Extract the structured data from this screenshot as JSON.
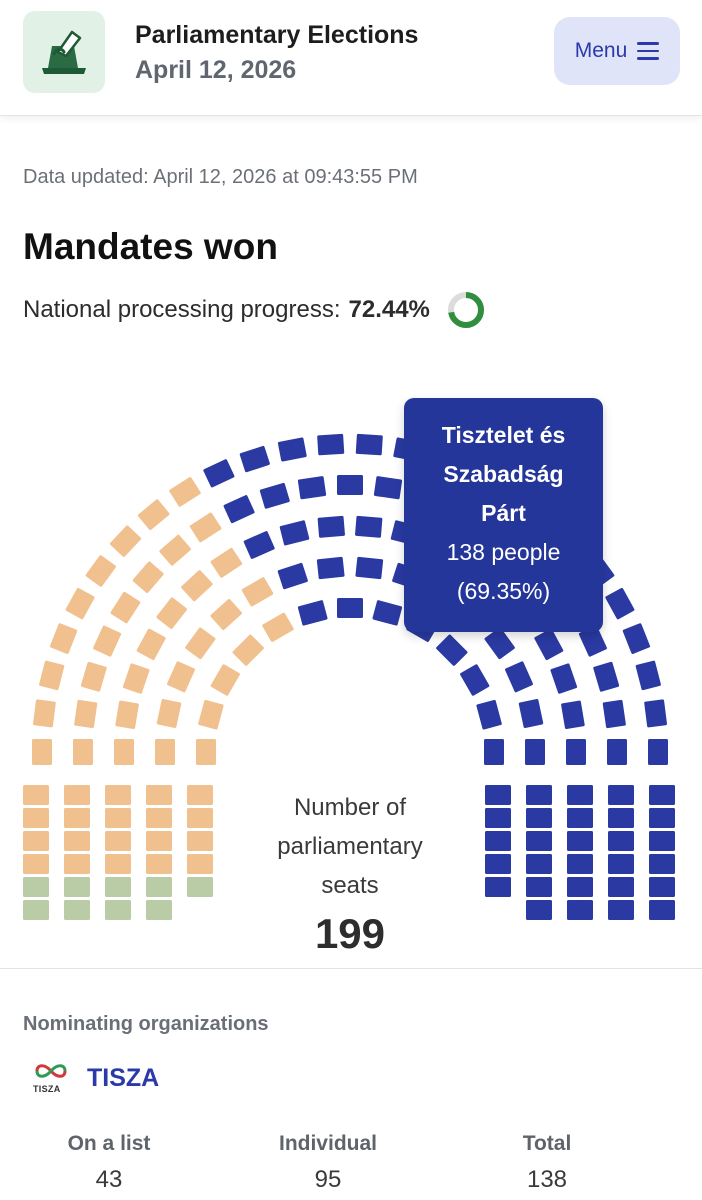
{
  "header": {
    "title": "Parliamentary Elections",
    "date": "April 12, 2026",
    "menu_label": "Menu",
    "logo_icon": "ballot-box-icon",
    "menu_icon": "hamburger-icon"
  },
  "updated_text": "Data updated: April 12, 2026 at 09:43:55 PM",
  "mandates": {
    "title": "Mandates won",
    "progress_label": "National processing progress:",
    "progress_value": "72.44%",
    "progress_fraction": 0.7244
  },
  "seats": {
    "center_label_lines": [
      "Number of",
      "parliamentary",
      "seats"
    ],
    "total": "199",
    "colors": {
      "blue": "#2a3aa2",
      "orange": "#f1c08f",
      "green": "#b9cca6"
    }
  },
  "tooltip": {
    "party_lines": [
      "Tisztelet és",
      "Szabadság",
      "Párt"
    ],
    "people": "138 people",
    "percent": "(69.35%)"
  },
  "organizations": {
    "heading": "Nominating organizations",
    "party_name": "TISZA",
    "logo_text": "TISZA",
    "stats": [
      {
        "label": "On a list",
        "value": "43"
      },
      {
        "label": "Individual",
        "value": "95"
      },
      {
        "label": "Total",
        "value": "138"
      }
    ]
  }
}
